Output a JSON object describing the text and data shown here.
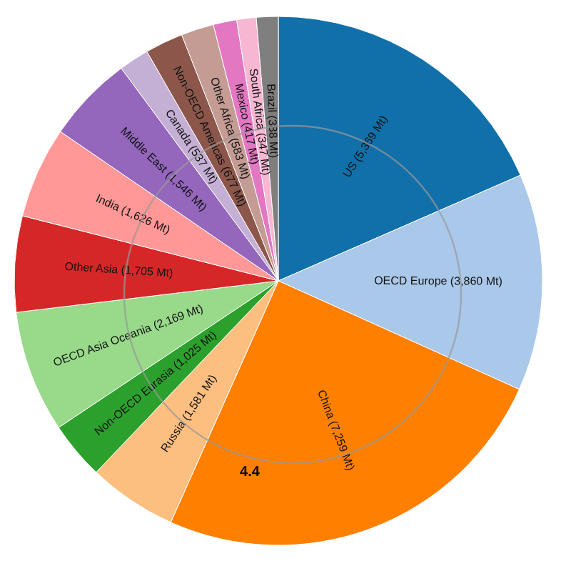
{
  "chart_data": {
    "type": "pie",
    "categories": [
      "US",
      "OECD Europe",
      "China",
      "Russia",
      "Non-OECD Eurasia",
      "OECD Asia Oceania",
      "Other Asia",
      "India",
      "Middle East",
      "Canada",
      "Non-OECD Americas",
      "Other Africa",
      "Mexico",
      "South Africa",
      "Brazil"
    ],
    "values": [
      5369,
      3860,
      7259,
      1581,
      1025,
      2169,
      1705,
      1626,
      1546,
      537,
      677,
      583,
      417,
      347,
      388
    ],
    "value_labels": [
      "(5,369 Mt)",
      "(3,860 Mt)",
      "(7,259 Mt)",
      "(1,581 Mt)",
      "(1,025 Mt)",
      "(2,169 Mt)",
      "(1,705 Mt)",
      "(1,626 Mt)",
      "(1,546 Mt)",
      "(537 Mt)",
      "(677 Mt)",
      "(583 Mt)",
      "(417 Mt)",
      "(347 Mt)",
      "(388 Mt)"
    ],
    "colors": [
      "#1170aa",
      "#a9c8ea",
      "#ff8000",
      "#fdbf80",
      "#2ca02c",
      "#98d98a",
      "#d62728",
      "#ff9896",
      "#9467bd",
      "#c5b0d5",
      "#8c564b",
      "#c49c94",
      "#e377c2",
      "#f7b6d2",
      "#7f7f7f"
    ],
    "annotations": [
      "4.4"
    ],
    "legend": false
  }
}
